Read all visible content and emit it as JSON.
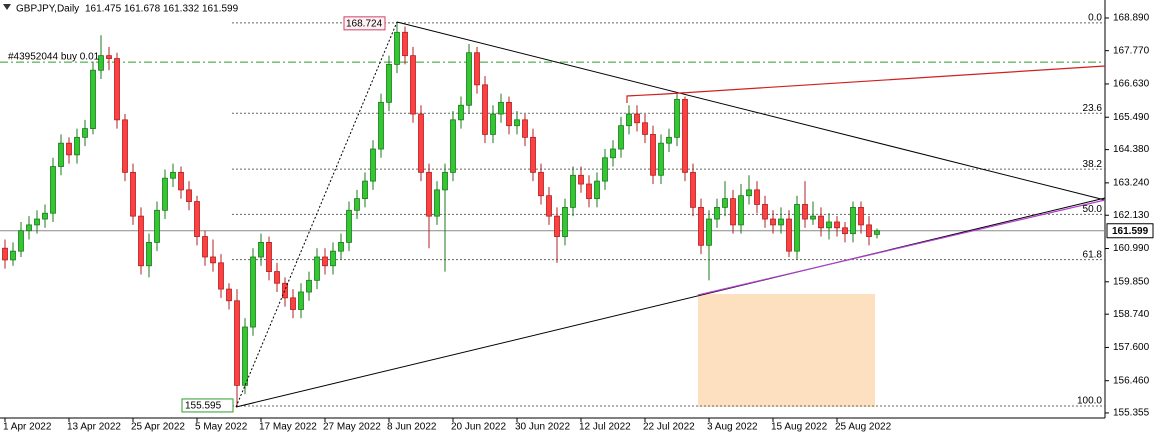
{
  "chart_data": {
    "type": "candlestick",
    "header": {
      "symbol": "GBPJPY,Daily",
      "values": [
        161.475,
        161.678,
        161.332,
        161.599
      ]
    },
    "categories": [
      "1 Apr 2022",
      null,
      null,
      null,
      null,
      null,
      null,
      null,
      "13 Apr 2022",
      null,
      null,
      null,
      null,
      null,
      null,
      null,
      "25 Apr 2022",
      null,
      null,
      null,
      null,
      null,
      null,
      null,
      "5 May 2022",
      null,
      null,
      null,
      null,
      null,
      null,
      null,
      "17 May 2022",
      null,
      null,
      null,
      null,
      null,
      null,
      null,
      "27 May 2022",
      null,
      null,
      null,
      null,
      null,
      null,
      null,
      "8 Jun 2022",
      null,
      null,
      null,
      null,
      null,
      null,
      null,
      "20 Jun 2022",
      null,
      null,
      null,
      null,
      null,
      null,
      null,
      "30 Jun 2022",
      null,
      null,
      null,
      null,
      null,
      null,
      null,
      "12 Jul 2022",
      null,
      null,
      null,
      null,
      null,
      null,
      null,
      "22 Jul 2022",
      null,
      null,
      null,
      null,
      null,
      null,
      null,
      "3 Aug 2022",
      null,
      null,
      null,
      null,
      null,
      null,
      null,
      "15 Aug 2022",
      null,
      null,
      null,
      null,
      null,
      null,
      null,
      "25 Aug 2022",
      null,
      null,
      null,
      null,
      null
    ],
    "series": [
      {
        "name": "GBPJPY",
        "up_color": "#32c832",
        "down_color": "#ff4040",
        "ohlc": [
          [
            161.0,
            161.3,
            160.3,
            160.6
          ],
          [
            160.6,
            161.2,
            160.4,
            160.9
          ],
          [
            160.9,
            161.9,
            160.7,
            161.6
          ],
          [
            161.6,
            162.1,
            161.3,
            161.8
          ],
          [
            161.8,
            162.3,
            161.5,
            162.0
          ],
          [
            162.0,
            162.5,
            161.7,
            162.2
          ],
          [
            162.2,
            164.1,
            161.9,
            163.8
          ],
          [
            163.8,
            164.9,
            163.5,
            164.6
          ],
          [
            164.6,
            164.8,
            163.9,
            164.2
          ],
          [
            164.2,
            165.1,
            163.9,
            164.8
          ],
          [
            164.8,
            165.4,
            164.5,
            165.1
          ],
          [
            165.1,
            167.4,
            164.9,
            167.1
          ],
          [
            167.1,
            168.3,
            166.8,
            167.6
          ],
          [
            167.6,
            167.9,
            167.1,
            167.5
          ],
          [
            167.5,
            167.7,
            165.1,
            165.4
          ],
          [
            165.4,
            165.6,
            163.3,
            163.6
          ],
          [
            163.6,
            163.9,
            161.8,
            162.1
          ],
          [
            162.1,
            162.4,
            160.1,
            160.4
          ],
          [
            160.4,
            161.5,
            160.0,
            161.2
          ],
          [
            161.2,
            162.6,
            160.9,
            162.3
          ],
          [
            162.3,
            163.7,
            162.0,
            163.4
          ],
          [
            163.4,
            163.9,
            163.1,
            163.6
          ],
          [
            163.6,
            163.8,
            162.7,
            163.0
          ],
          [
            163.0,
            163.3,
            162.3,
            162.6
          ],
          [
            162.6,
            162.8,
            161.1,
            161.4
          ],
          [
            161.4,
            161.6,
            160.4,
            160.7
          ],
          [
            160.7,
            161.3,
            160.2,
            160.5
          ],
          [
            160.5,
            160.8,
            159.3,
            159.6
          ],
          [
            159.6,
            159.8,
            158.9,
            159.2
          ],
          [
            159.2,
            159.6,
            155.595,
            156.3
          ],
          [
            156.3,
            158.6,
            156.0,
            158.3
          ],
          [
            158.3,
            161.0,
            158.0,
            160.7
          ],
          [
            160.7,
            161.5,
            160.4,
            161.2
          ],
          [
            161.2,
            161.4,
            159.9,
            160.2
          ],
          [
            160.2,
            160.5,
            159.5,
            159.8
          ],
          [
            159.8,
            160.0,
            159.0,
            159.3
          ],
          [
            159.3,
            159.6,
            158.6,
            158.9
          ],
          [
            158.9,
            159.8,
            158.6,
            159.5
          ],
          [
            159.5,
            160.2,
            159.2,
            159.9
          ],
          [
            159.9,
            161.0,
            159.6,
            160.7
          ],
          [
            160.7,
            161.0,
            160.1,
            160.4
          ],
          [
            160.4,
            161.2,
            160.1,
            160.9
          ],
          [
            160.9,
            161.5,
            160.6,
            161.2
          ],
          [
            161.2,
            162.6,
            160.9,
            162.3
          ],
          [
            162.3,
            163.0,
            162.0,
            162.7
          ],
          [
            162.7,
            163.6,
            162.4,
            163.3
          ],
          [
            163.3,
            164.7,
            163.0,
            164.4
          ],
          [
            164.4,
            166.3,
            164.1,
            166.0
          ],
          [
            166.0,
            167.6,
            165.7,
            167.3
          ],
          [
            167.3,
            168.724,
            167.0,
            168.4
          ],
          [
            168.4,
            168.6,
            167.3,
            167.6
          ],
          [
            167.6,
            167.9,
            165.3,
            165.6
          ],
          [
            165.6,
            165.9,
            163.3,
            163.6
          ],
          [
            163.6,
            163.9,
            161.0,
            162.1
          ],
          [
            162.1,
            163.3,
            161.8,
            163.0
          ],
          [
            163.0,
            163.9,
            160.2,
            163.6
          ],
          [
            163.6,
            165.7,
            163.3,
            165.4
          ],
          [
            165.4,
            166.2,
            165.1,
            165.9
          ],
          [
            165.9,
            168.0,
            165.6,
            167.7
          ],
          [
            167.7,
            167.9,
            166.3,
            166.6
          ],
          [
            166.6,
            166.9,
            164.6,
            164.9
          ],
          [
            164.9,
            165.9,
            164.6,
            165.6
          ],
          [
            165.6,
            166.3,
            165.3,
            166.0
          ],
          [
            166.0,
            166.2,
            164.9,
            165.2
          ],
          [
            165.2,
            165.7,
            164.9,
            165.4
          ],
          [
            165.4,
            165.6,
            164.5,
            164.8
          ],
          [
            164.8,
            165.1,
            163.3,
            163.6
          ],
          [
            163.6,
            163.9,
            162.5,
            162.8
          ],
          [
            162.8,
            163.1,
            161.8,
            162.1
          ],
          [
            162.1,
            162.4,
            160.5,
            161.4
          ],
          [
            161.4,
            162.7,
            161.1,
            162.4
          ],
          [
            162.4,
            163.8,
            162.1,
            163.5
          ],
          [
            163.5,
            163.8,
            162.9,
            163.2
          ],
          [
            163.2,
            163.5,
            162.4,
            162.7
          ],
          [
            162.7,
            163.6,
            162.4,
            163.3
          ],
          [
            163.3,
            164.4,
            163.0,
            164.1
          ],
          [
            164.1,
            164.7,
            163.8,
            164.4
          ],
          [
            164.4,
            165.5,
            164.1,
            165.2
          ],
          [
            165.2,
            165.9,
            164.9,
            165.6
          ],
          [
            165.6,
            165.9,
            165.0,
            165.3
          ],
          [
            165.3,
            165.6,
            164.6,
            164.9
          ],
          [
            164.9,
            165.2,
            163.2,
            163.5
          ],
          [
            163.5,
            164.9,
            163.2,
            164.6
          ],
          [
            164.6,
            165.1,
            164.3,
            164.8
          ],
          [
            164.8,
            166.3,
            164.5,
            166.1
          ],
          [
            166.1,
            166.2,
            163.3,
            163.6
          ],
          [
            163.6,
            163.9,
            162.1,
            162.4
          ],
          [
            162.4,
            162.7,
            160.8,
            161.1
          ],
          [
            161.1,
            162.3,
            159.9,
            162.0
          ],
          [
            162.0,
            162.7,
            161.7,
            162.4
          ],
          [
            162.4,
            163.3,
            162.1,
            162.7
          ],
          [
            162.7,
            163.0,
            161.5,
            161.8
          ],
          [
            161.8,
            163.2,
            161.5,
            162.8
          ],
          [
            162.8,
            163.5,
            162.5,
            163.0
          ],
          [
            163.0,
            163.3,
            162.2,
            162.5
          ],
          [
            162.5,
            162.8,
            161.7,
            162.0
          ],
          [
            162.0,
            162.3,
            161.5,
            161.8
          ],
          [
            161.8,
            162.4,
            161.5,
            162.0
          ],
          [
            162.0,
            162.3,
            160.7,
            160.9
          ],
          [
            160.9,
            162.8,
            160.6,
            162.5
          ],
          [
            162.5,
            163.3,
            161.7,
            162.0
          ],
          [
            162.0,
            162.6,
            161.8,
            162.1
          ],
          [
            162.1,
            162.4,
            161.4,
            161.7
          ],
          [
            161.7,
            162.2,
            161.3,
            161.9
          ],
          [
            161.9,
            162.1,
            161.4,
            161.7
          ],
          [
            161.7,
            161.9,
            161.2,
            161.5
          ],
          [
            161.5,
            162.6,
            161.2,
            162.4
          ],
          [
            162.4,
            162.6,
            161.5,
            161.8
          ],
          [
            161.8,
            162.1,
            161.1,
            161.4
          ],
          [
            161.475,
            161.678,
            161.332,
            161.599
          ]
        ]
      }
    ],
    "ylim": [
      155.182,
      169.507
    ],
    "yticks": [
      {
        "value": 168.89,
        "label": "168.890"
      },
      {
        "value": 167.77,
        "label": "167.770"
      },
      {
        "value": 166.63,
        "label": "166.630"
      },
      {
        "value": 165.49,
        "label": "165.490"
      },
      {
        "value": 164.38,
        "label": "164.380"
      },
      {
        "value": 163.24,
        "label": "163.240"
      },
      {
        "value": 162.13,
        "label": "162.130"
      },
      {
        "value": 160.99,
        "label": "160.990"
      },
      {
        "value": 159.85,
        "label": "159.850"
      },
      {
        "value": 158.74,
        "label": "158.740"
      },
      {
        "value": 157.6,
        "label": "157.600"
      },
      {
        "value": 156.46,
        "label": "156.460"
      },
      {
        "value": 155.355,
        "label": "155.355"
      }
    ],
    "bid": 161.599,
    "fibo": {
      "high_label": "168.724",
      "low_label": "155.595",
      "levels": [
        {
          "label": "0.0",
          "price": 168.724
        },
        {
          "label": "23.6",
          "price": 165.626
        },
        {
          "label": "38.2",
          "price": 163.709
        },
        {
          "label": "50.0",
          "price": 162.16
        },
        {
          "label": "61.8",
          "price": 160.61
        },
        {
          "label": "100.0",
          "price": 155.595
        }
      ]
    },
    "order": {
      "label": "#43952044 buy 0.01",
      "price": 167.38
    }
  }
}
